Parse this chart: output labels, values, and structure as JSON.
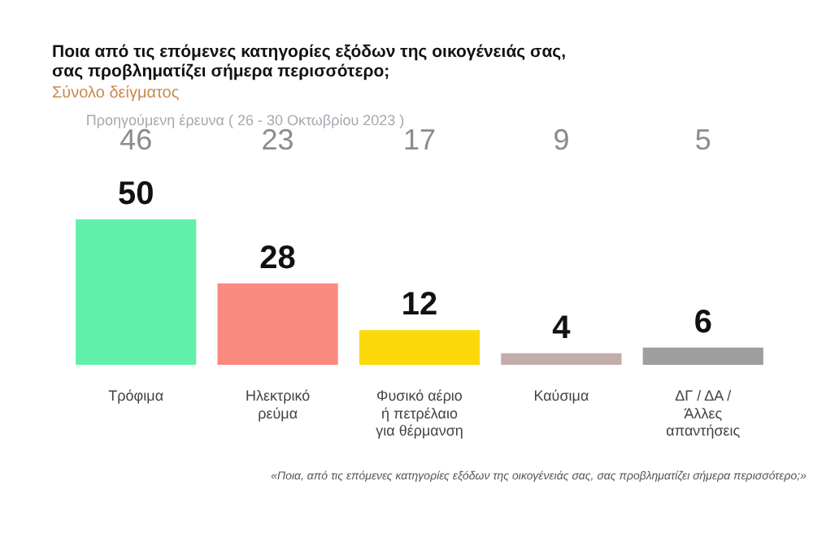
{
  "chart_data": {
    "type": "bar",
    "title": "Ποια από τις επόμενες κατηγορίες εξόδων της οικογένειάς σας,\nσας προβληματίζει σήμερα περισσότερο;",
    "subtitle": "Σύνολο δείγματος",
    "categories": [
      "Τρόφιμα",
      "Ηλεκτρικό ρεύμα",
      "Φυσικό αέριο ή πετρέλαιο για θέρμανση",
      "Καύσιμα",
      "ΔΓ / ΔΑ / Άλλες απαντήσεις"
    ],
    "values": [
      50,
      28,
      12,
      4,
      6
    ],
    "colors": [
      "#62efaa",
      "#fa8a80",
      "#fcd90a",
      "#c2adab",
      "#9e9e9e"
    ],
    "data_labels": true,
    "grid": false,
    "legend": false,
    "annotations": [
      "Προηγούμενη έρευνα ( 26 - 30 Οκτωβρίου 2023 )",
      "46",
      "23",
      "17",
      "9",
      "5",
      "«Ποια, από τις επόμενες κατηγορίες εξόδων της οικογένειάς σας, σας προβληματίζει σήμερα περισσότερο;»"
    ]
  }
}
